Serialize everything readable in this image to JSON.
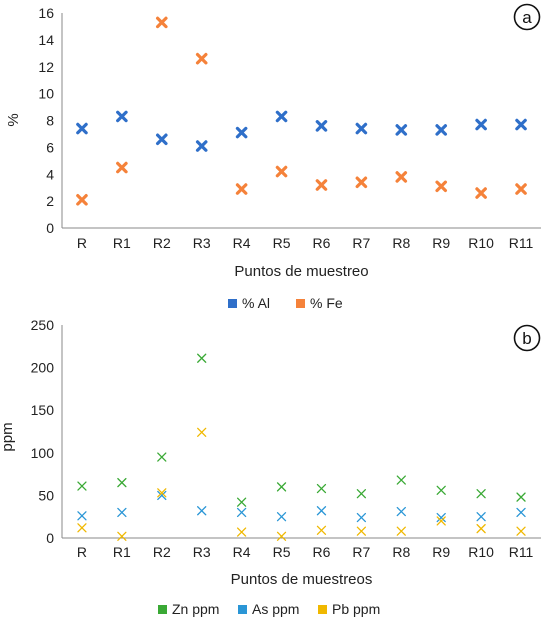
{
  "chart_data": [
    {
      "type": "scatter",
      "panel_label": "a",
      "categories": [
        "R",
        "R1",
        "R2",
        "R3",
        "R4",
        "R5",
        "R6",
        "R7",
        "R8",
        "R9",
        "R10",
        "R11"
      ],
      "series": [
        {
          "name": "% Al",
          "color": "#2f6fc9",
          "marker": "bold-x",
          "values": [
            7.4,
            8.3,
            6.6,
            6.1,
            7.1,
            8.3,
            7.6,
            7.4,
            7.3,
            7.3,
            7.7,
            7.7
          ]
        },
        {
          "name": "% Fe",
          "color": "#f5823a",
          "marker": "bold-x",
          "values": [
            2.1,
            4.5,
            15.3,
            12.6,
            2.9,
            4.2,
            3.2,
            3.4,
            3.8,
            3.1,
            2.6,
            2.9
          ]
        }
      ],
      "xlabel": "Puntos de muestreo",
      "ylabel": "%",
      "ylim": [
        0,
        16
      ],
      "yticks": [
        0,
        2,
        4,
        6,
        8,
        10,
        12,
        14,
        16
      ],
      "grid": false,
      "legend_position": "bottom-center"
    },
    {
      "type": "scatter",
      "panel_label": "b",
      "categories": [
        "R",
        "R1",
        "R2",
        "R3",
        "R4",
        "R5",
        "R6",
        "R7",
        "R8",
        "R9",
        "R10",
        "R11"
      ],
      "series": [
        {
          "name": "Zn ppm",
          "color": "#3aa935",
          "marker": "x",
          "values": [
            61,
            65,
            95,
            211,
            42,
            60,
            58,
            52,
            68,
            56,
            52,
            48
          ]
        },
        {
          "name": "As ppm",
          "color": "#2a96d6",
          "marker": "x",
          "values": [
            26,
            30,
            50,
            32,
            30,
            25,
            32,
            24,
            31,
            24,
            25,
            30
          ]
        },
        {
          "name": "Pb ppm",
          "color": "#f0b800",
          "marker": "x",
          "values": [
            12,
            2,
            53,
            124,
            7,
            2,
            9,
            8,
            8,
            20,
            11,
            8
          ]
        }
      ],
      "xlabel": "Puntos de muestreos",
      "ylabel": "ppm",
      "ylim": [
        0,
        250
      ],
      "yticks": [
        0,
        50,
        100,
        150,
        200,
        250
      ],
      "grid": false,
      "legend_position": "bottom-center"
    }
  ]
}
